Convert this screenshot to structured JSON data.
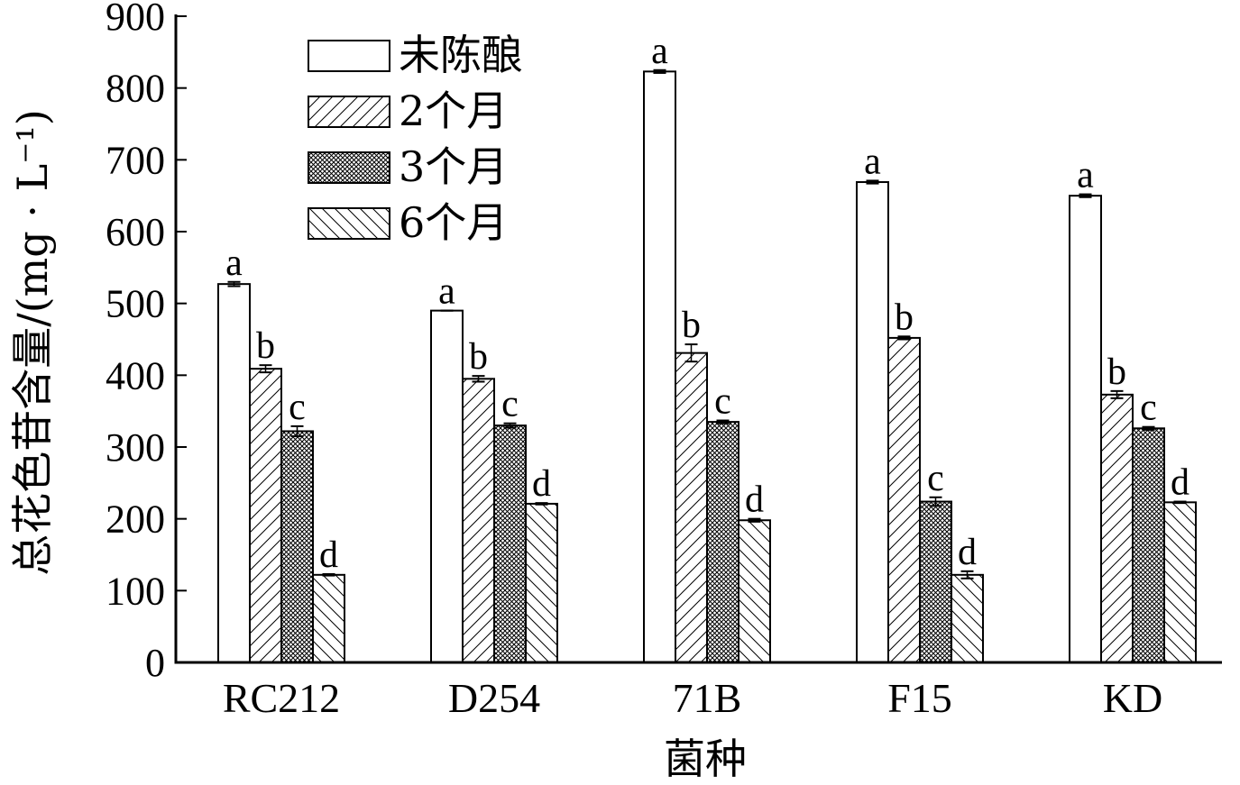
{
  "chart_data": {
    "type": "bar",
    "xlabel": "菌种",
    "ylabel": "总花色苷含量/(mg · L⁻¹)",
    "ylim": [
      0,
      900
    ],
    "yticks": [
      0,
      100,
      200,
      300,
      400,
      500,
      600,
      700,
      800,
      900
    ],
    "categories": [
      "RC212",
      "D254",
      "71B",
      "F15",
      "KD"
    ],
    "legend_position": "top-left",
    "series": [
      {
        "name": "未陈酿",
        "pattern": "none",
        "values": [
          527,
          490,
          823,
          669,
          650
        ],
        "errors": [
          3,
          0,
          2,
          2,
          2
        ],
        "letters": [
          "a",
          "a",
          "a",
          "a",
          "a"
        ]
      },
      {
        "name": "2个月",
        "pattern": "diagonal-up",
        "values": [
          409,
          395,
          431,
          452,
          373
        ],
        "errors": [
          5,
          4,
          12,
          2,
          5
        ],
        "letters": [
          "b",
          "b",
          "b",
          "b",
          "b"
        ]
      },
      {
        "name": "3个月",
        "pattern": "crosshatch",
        "values": [
          322,
          330,
          335,
          224,
          326
        ],
        "errors": [
          7,
          3,
          2,
          6,
          2
        ],
        "letters": [
          "c",
          "c",
          "c",
          "c",
          "c"
        ]
      },
      {
        "name": "6个月",
        "pattern": "diagonal-down",
        "values": [
          122,
          221,
          198,
          122,
          223
        ],
        "errors": [
          1,
          1,
          2,
          5,
          1
        ],
        "letters": [
          "d",
          "d",
          "d",
          "d",
          "d"
        ]
      }
    ]
  }
}
